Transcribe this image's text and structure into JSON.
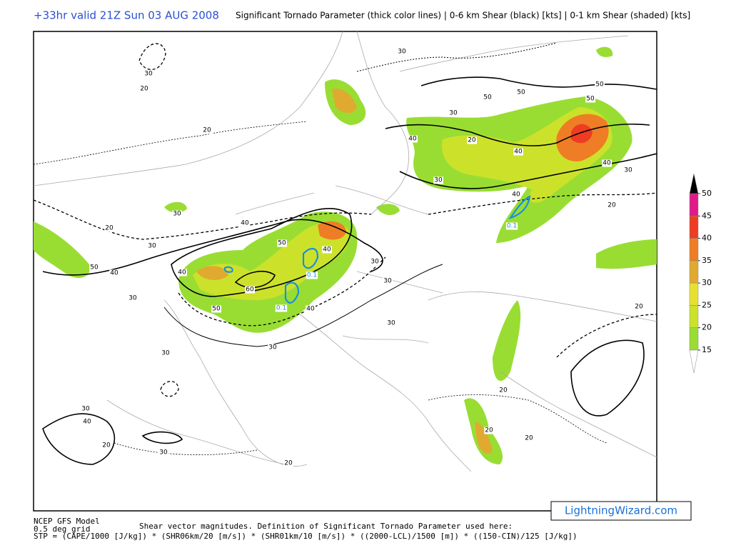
{
  "header": {
    "valid_time": "+33hr valid 21Z Sun 03 AUG 2008",
    "description": "Significant Tornado Parameter (thick color lines) | 0-6 km Shear (black) [kts] | 0-1 km Shear (shaded) [kts]"
  },
  "colorbar": {
    "ticks": [
      15,
      20,
      25,
      30,
      35,
      40,
      45,
      50
    ],
    "colors": [
      "#99dd33",
      "#cce22a",
      "#e6e030",
      "#e0aa30",
      "#ee7d25",
      "#ee3c22",
      "#e01a88"
    ],
    "below_color": "#ffffff",
    "above_color": "#000000"
  },
  "contour_labels": [
    "30",
    "30",
    "20",
    "20",
    "50",
    "50",
    "50",
    "50",
    "30",
    "40",
    "20",
    "40",
    "40",
    "30",
    "30",
    "40",
    "20",
    "30",
    "20",
    "40",
    "30",
    "50",
    "40",
    "50",
    "40",
    "40",
    "60",
    "30",
    "50",
    "40",
    "30",
    "30",
    "30",
    "30",
    "30",
    "20",
    "20",
    "30",
    "40",
    "20",
    "30",
    "20",
    "20",
    "20",
    "0.1",
    "0.1",
    "0.1"
  ],
  "footer": {
    "model": "NCEP GFS Model",
    "grid": "0.5 deg grid",
    "definition_intro": "Shear vector magnitudes. Definition of Significant Tornado Parameter used here:",
    "formula": "STP = (CAPE/1000 [J/kg]) * (SHR06km/20 [m/s]) * (SHR01km/10 [m/s]) * ((2000-LCL)/1500 [m]) * ((150-CIN)/125 [J/kg])"
  },
  "logo": "LightningWizard.com"
}
